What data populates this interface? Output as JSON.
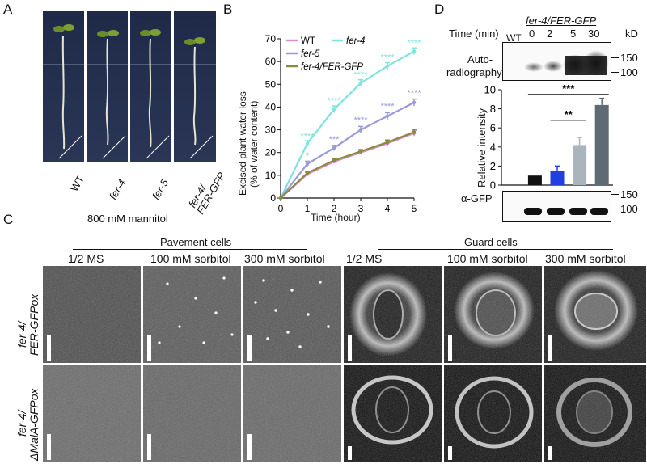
{
  "panel_letters": [
    "A",
    "B",
    "C",
    "D"
  ],
  "panelA": {
    "genotypes": [
      "WT",
      "fer-4",
      "fer-5",
      "fer-4/",
      "FER-GFP"
    ],
    "treatment": "800 mM mannitol"
  },
  "panelB": {
    "chart_data": {
      "type": "line",
      "ylabel_line1": "Excised plant water loss",
      "ylabel_line2": "(% of water content)",
      "xlabel": "Time (hour)",
      "x": [
        0,
        1,
        2,
        3,
        4,
        5
      ],
      "xlim": [
        0,
        5
      ],
      "ylim": [
        0,
        70
      ],
      "y_ticks": [
        0,
        10,
        20,
        30,
        40,
        50,
        60,
        70
      ],
      "x_ticks": [
        0,
        1,
        2,
        3,
        4,
        5
      ],
      "legend_position": "top-left",
      "series": [
        {
          "name": "WT",
          "color": "#d98fd0",
          "values": [
            0,
            10.5,
            16,
            20,
            24,
            28.5
          ],
          "errors": [
            0,
            0.8,
            0.8,
            0.8,
            1.0,
            1.2
          ]
        },
        {
          "name": "fer-4",
          "color": "#7fe3df",
          "values": [
            0,
            24,
            39,
            50.5,
            58,
            64.5
          ],
          "errors": [
            0,
            1.2,
            1.5,
            1.5,
            1.5,
            1.5
          ]
        },
        {
          "name": "fer-5",
          "color": "#9a9ad9",
          "values": [
            0,
            15,
            22,
            30,
            36,
            42
          ],
          "errors": [
            0,
            1.2,
            1.2,
            1.5,
            1.5,
            1.5
          ]
        },
        {
          "name": "fer-4/FER-GFP",
          "color": "#8a8a3a",
          "values": [
            0,
            11,
            16.5,
            20.5,
            24.5,
            29
          ],
          "errors": [
            0,
            0.8,
            0.8,
            0.8,
            1.0,
            1.2
          ]
        }
      ],
      "annotations": [
        {
          "x": 1,
          "y": 26,
          "text": "****",
          "color": "#7fe3df"
        },
        {
          "x": 2,
          "y": 41.5,
          "text": "****",
          "color": "#7fe3df"
        },
        {
          "x": 3,
          "y": 53,
          "text": "****",
          "color": "#7fe3df"
        },
        {
          "x": 4,
          "y": 60.5,
          "text": "****",
          "color": "#7fe3df"
        },
        {
          "x": 5,
          "y": 67,
          "text": "****",
          "color": "#7fe3df"
        },
        {
          "x": 1,
          "y": 17.5,
          "text": "*",
          "color": "#9a9ad9"
        },
        {
          "x": 2,
          "y": 24.5,
          "text": "***",
          "color": "#9a9ad9"
        },
        {
          "x": 3,
          "y": 33,
          "text": "****",
          "color": "#9a9ad9"
        },
        {
          "x": 4,
          "y": 39,
          "text": "****",
          "color": "#9a9ad9"
        },
        {
          "x": 5,
          "y": 45,
          "text": "****",
          "color": "#9a9ad9"
        }
      ]
    }
  },
  "panelC": {
    "group_pavement": "Pavement cells",
    "group_guard": "Guard cells",
    "conditions": [
      "1/2 MS",
      "100 mM sorbitol",
      "300 mM sorbitol",
      "1/2 MS",
      "100 mM sorbitol",
      "300 mM sorbitol"
    ],
    "row1_label_a": "fer-4/",
    "row1_label_b": "FER-GFPox",
    "row2_label_a": "fer-4/",
    "row2_label_b": "ΔMalA-GFPox"
  },
  "panelD": {
    "construct": "fer-4/FER-GFP",
    "time_label": "Time (min)",
    "lanes": [
      "WT",
      "0",
      "2",
      "5",
      "30"
    ],
    "kd_label": "kD",
    "blot1_label_a": "Auto-",
    "blot1_label_b": "radiography",
    "blot2_label": "α-GFP",
    "markers": [
      "150",
      "100"
    ],
    "chart_data": {
      "type": "bar",
      "ylabel": "Relative intensity",
      "ylim": [
        0,
        10
      ],
      "y_ticks": [
        0,
        2,
        4,
        6,
        8,
        10
      ],
      "categories": [
        "WT",
        "0",
        "2",
        "5",
        "30"
      ],
      "values": [
        0,
        1.0,
        1.5,
        4.2,
        8.4
      ],
      "errors": [
        0,
        0,
        0.5,
        0.8,
        0.7
      ],
      "colors": [
        "#ffffff",
        "#111111",
        "#1f3fe0",
        "#a9b4bd",
        "#5f6b73"
      ],
      "significance": [
        {
          "from": "2",
          "to": "5",
          "label": "**"
        },
        {
          "from": "0",
          "to": "30",
          "label": "***"
        }
      ]
    }
  }
}
